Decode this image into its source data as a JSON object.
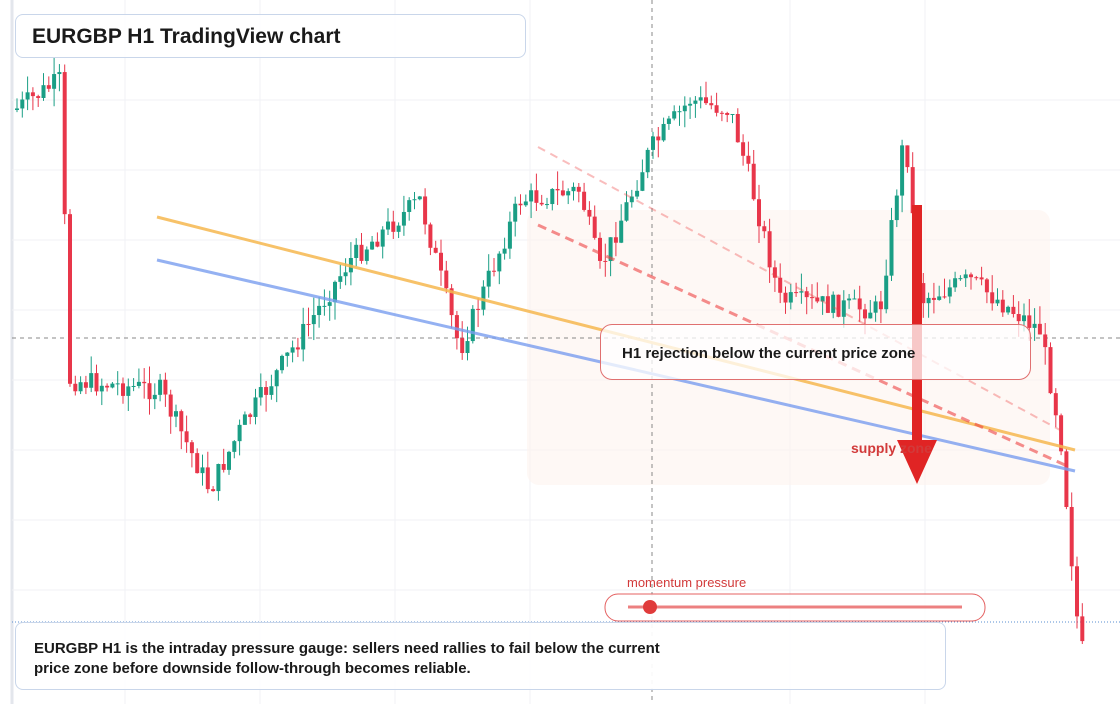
{
  "header": {
    "title": "EURGBP H1 TradingView chart"
  },
  "annotations": {
    "rejection": "H1 rejection below the current price zone",
    "supply": "supply zone"
  },
  "gauge": {
    "label": "momentum pressure"
  },
  "caption": {
    "text": "EURGBP H1 is the intraday pressure gauge: sellers need rallies to fail below the current price zone before downside follow-through becomes reliable."
  }
}
